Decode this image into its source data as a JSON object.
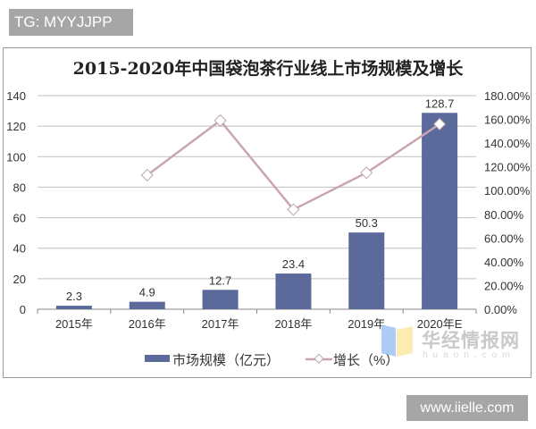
{
  "badge": {
    "text": "TG: MYYJJPP"
  },
  "watermarks": {
    "site": "www.iielle.com",
    "huaon_cn": "华经情报网",
    "huaon_en": "huaon.com"
  },
  "chart_data": {
    "type": "bar+line",
    "title": "2015-2020年中国袋泡茶行业线上市场规模及增长",
    "categories": [
      "2015年",
      "2016年",
      "2017年",
      "2018年",
      "2019年",
      "2020年E"
    ],
    "series": [
      {
        "name": "市场规模（亿元）",
        "type": "bar",
        "axis": "left",
        "color": "#5b6a9a",
        "values": [
          2.3,
          4.9,
          12.7,
          23.4,
          50.3,
          128.7
        ],
        "labels": [
          "2.3",
          "4.9",
          "12.7",
          "23.4",
          "50.3",
          "128.7"
        ]
      },
      {
        "name": "增长（%）",
        "type": "line",
        "axis": "right",
        "color": "#c9a6ad",
        "marker": "diamond",
        "values": [
          null,
          113,
          159,
          84,
          115,
          156
        ]
      }
    ],
    "y_left": {
      "ticks": [
        "0",
        "20",
        "40",
        "60",
        "80",
        "100",
        "120",
        "140"
      ],
      "ylim": [
        0,
        140
      ]
    },
    "y_right": {
      "ticks": [
        "0.00%",
        "20.00%",
        "40.00%",
        "60.00%",
        "80.00%",
        "100.00%",
        "120.00%",
        "140.00%",
        "160.00%",
        "180.00%"
      ],
      "ylim": [
        0,
        180
      ]
    },
    "grid": true,
    "legend_position": "bottom",
    "legend": [
      "市场规模（亿元）",
      "增长（%）"
    ]
  }
}
